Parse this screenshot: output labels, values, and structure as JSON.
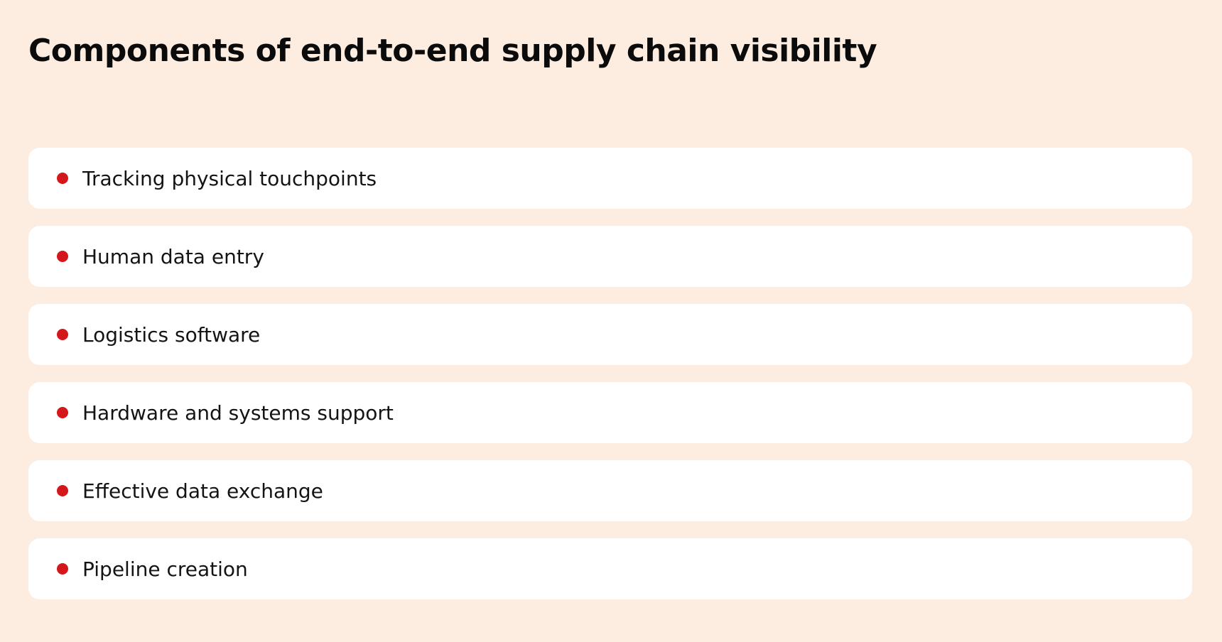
{
  "page": {
    "title": "Components of end-to-end supply chain visibility"
  },
  "colors": {
    "background": "#fdece0",
    "card": "#ffffff",
    "bullet": "#d4171b",
    "text": "#141414"
  },
  "components": {
    "items": [
      {
        "label": "Tracking physical touchpoints",
        "icon": "bullet-dot-icon"
      },
      {
        "label": "Human data entry",
        "icon": "bullet-dot-icon"
      },
      {
        "label": "Logistics software",
        "icon": "bullet-dot-icon"
      },
      {
        "label": "Hardware and systems support",
        "icon": "bullet-dot-icon"
      },
      {
        "label": "Effective data exchange",
        "icon": "bullet-dot-icon"
      },
      {
        "label": "Pipeline creation",
        "icon": "bullet-dot-icon"
      }
    ]
  }
}
